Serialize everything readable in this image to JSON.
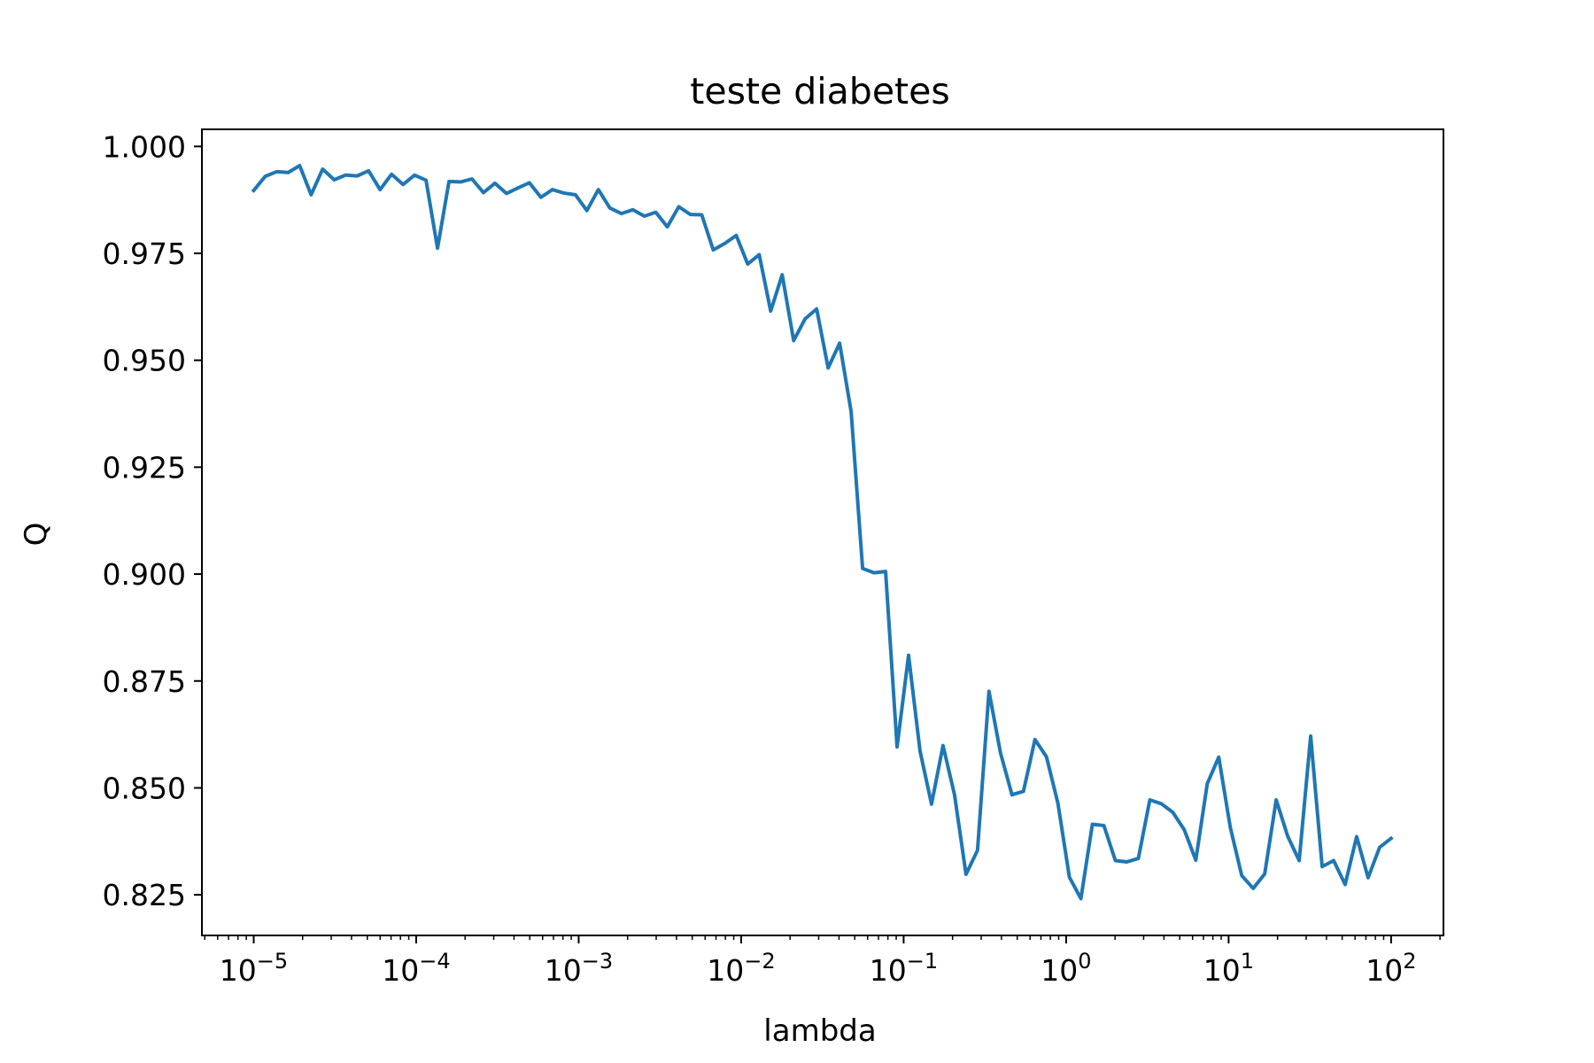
{
  "chart_data": {
    "type": "line",
    "title": "teste diabetes",
    "xlabel": "lambda",
    "ylabel": "Q",
    "xscale": "log",
    "xlim": [
      4.8e-06,
      210
    ],
    "ylim": [
      0.8155,
      1.004
    ],
    "grid": false,
    "legend": "none",
    "line_color": "#1f77b4",
    "yticks": [
      0.825,
      0.85,
      0.875,
      0.9,
      0.925,
      0.95,
      0.975,
      1.0
    ],
    "ytick_labels": [
      "0.825",
      "0.850",
      "0.875",
      "0.900",
      "0.925",
      "0.950",
      "0.975",
      "1.000"
    ],
    "xticks": [
      {
        "value": 1e-05,
        "base": "10",
        "exp": "−5"
      },
      {
        "value": 0.0001,
        "base": "10",
        "exp": "−4"
      },
      {
        "value": 0.001,
        "base": "10",
        "exp": "−3"
      },
      {
        "value": 0.01,
        "base": "10",
        "exp": "−2"
      },
      {
        "value": 0.1,
        "base": "10",
        "exp": "−1"
      },
      {
        "value": 1,
        "base": "10",
        "exp": "0"
      },
      {
        "value": 10,
        "base": "10",
        "exp": "1"
      },
      {
        "value": 100,
        "base": "10",
        "exp": "2"
      }
    ],
    "series": [
      {
        "x_log10": {
          "start": -5,
          "end": 2,
          "count": 100
        },
        "values": [
          0.9897,
          0.993,
          0.9941,
          0.9939,
          0.9955,
          0.9887,
          0.9947,
          0.9922,
          0.9933,
          0.9931,
          0.9943,
          0.9899,
          0.9935,
          0.9911,
          0.9933,
          0.9921,
          0.9762,
          0.9918,
          0.9917,
          0.9924,
          0.9892,
          0.9914,
          0.989,
          0.9903,
          0.9915,
          0.9881,
          0.9899,
          0.9891,
          0.9887,
          0.985,
          0.9899,
          0.9856,
          0.9843,
          0.9852,
          0.9837,
          0.9846,
          0.9812,
          0.9859,
          0.9841,
          0.984,
          0.9758,
          0.9773,
          0.9792,
          0.9725,
          0.9747,
          0.9615,
          0.97,
          0.9546,
          0.9597,
          0.962,
          0.9482,
          0.954,
          0.938,
          0.9013,
          0.9003,
          0.9006,
          0.8596,
          0.881,
          0.8586,
          0.8462,
          0.8599,
          0.8484,
          0.8298,
          0.8354,
          0.8726,
          0.8582,
          0.8484,
          0.8492,
          0.8613,
          0.8573,
          0.8464,
          0.8291,
          0.8241,
          0.8415,
          0.8412,
          0.833,
          0.8327,
          0.8335,
          0.8472,
          0.8463,
          0.8443,
          0.8402,
          0.8331,
          0.851,
          0.8572,
          0.8408,
          0.8295,
          0.8265,
          0.8299,
          0.8472,
          0.8387,
          0.833,
          0.8621,
          0.8316,
          0.833,
          0.8274,
          0.8386,
          0.829,
          0.8361,
          0.8382
        ]
      }
    ]
  }
}
